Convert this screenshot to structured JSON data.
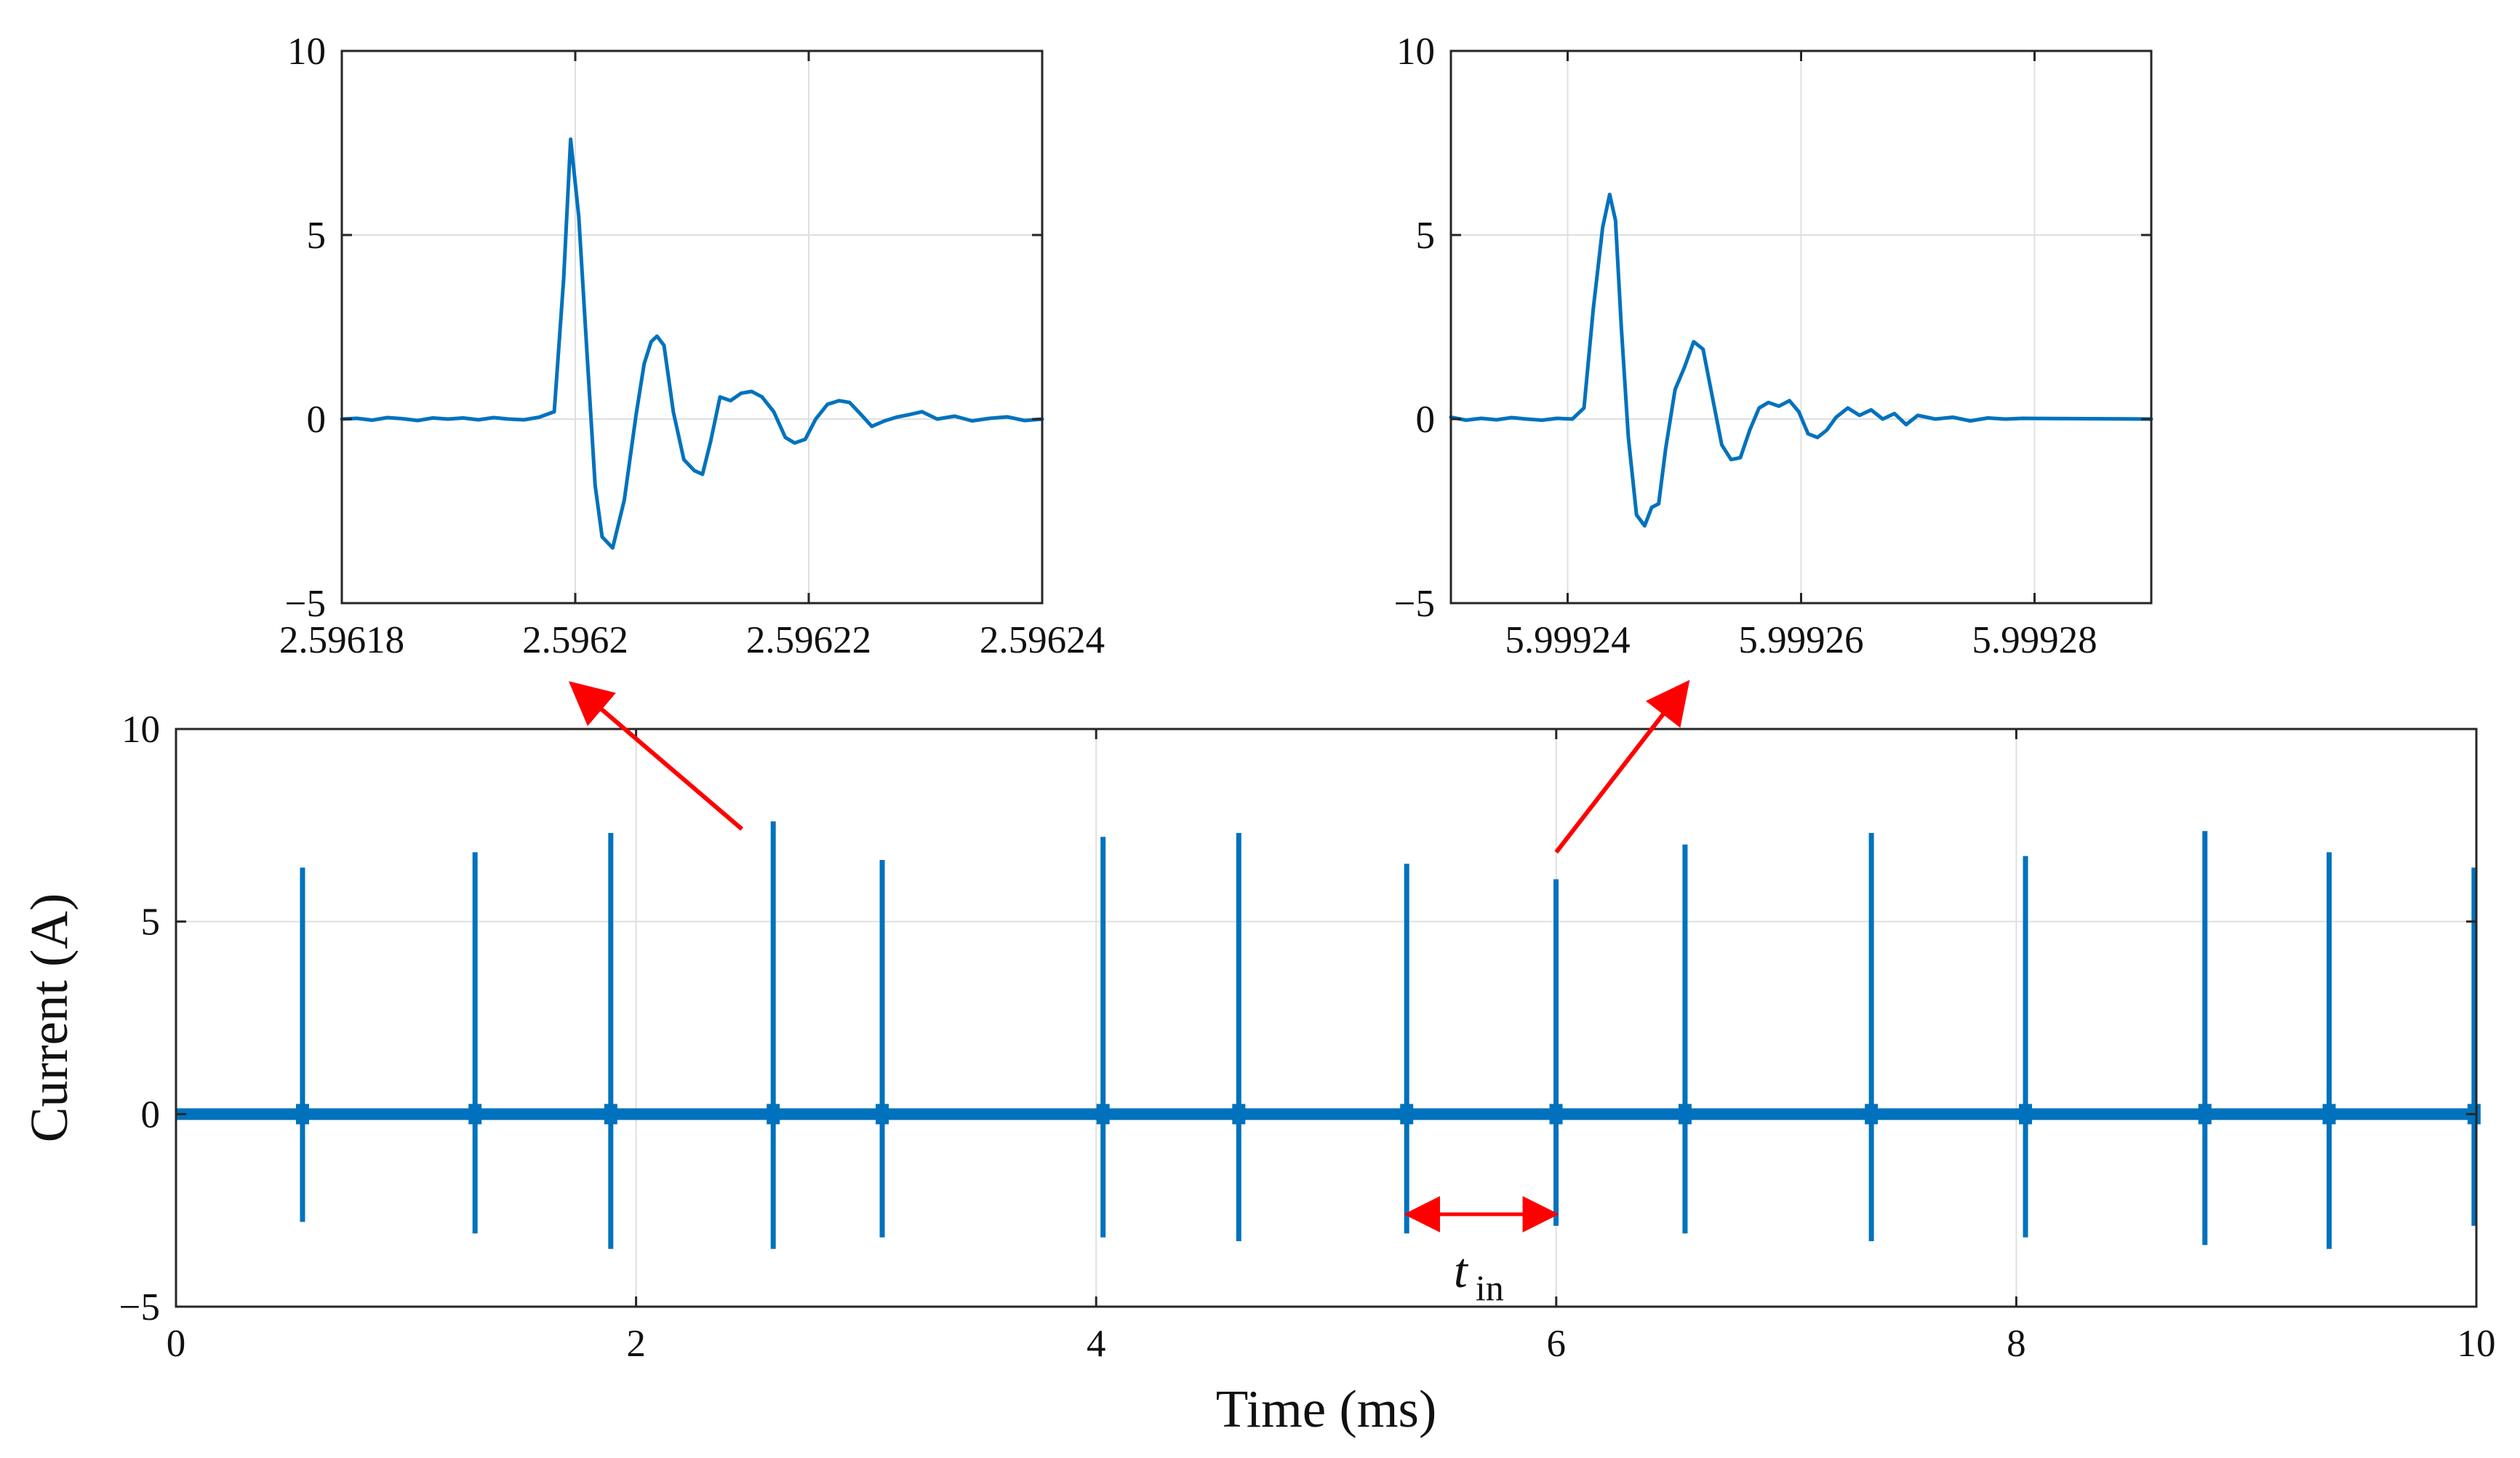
{
  "colors": {
    "trace": "#0072BD",
    "arrow": "#FF0000",
    "axis": "#262626",
    "grid": "#DFDFDF",
    "text": "#111111"
  },
  "chart_data": [
    {
      "id": "zoom-left",
      "type": "line",
      "title": "",
      "xlabel": "",
      "ylabel": "",
      "xlim": [
        2.59618,
        2.59624
      ],
      "ylim": [
        -5,
        10
      ],
      "grid": true,
      "x_ticks": [
        2.59618,
        2.5962,
        2.59622,
        2.59624
      ],
      "x_tick_labels": [
        "2.59618",
        "2.5962",
        "2.59622",
        "2.59624"
      ],
      "y_ticks": [
        -5,
        0,
        5,
        10
      ],
      "y_tick_labels": [
        "−5",
        "0",
        "5",
        "10"
      ],
      "series": [
        {
          "name": "current zoom at 2.5962 ms",
          "x": [
            2.59618,
            2.5961813,
            2.5961826,
            2.5961839,
            2.5961852,
            2.5961865,
            2.5961878,
            2.5961891,
            2.5961904,
            2.5961917,
            2.596193,
            2.5961943,
            2.5961956,
            2.5961969,
            2.5961982,
            2.596199,
            2.5961996,
            2.5962003,
            2.596201,
            2.5962017,
            2.5962023,
            2.5962032,
            2.5962042,
            2.5962052,
            2.5962059,
            2.5962065,
            2.596207,
            2.5962076,
            2.5962084,
            2.5962093,
            2.5962102,
            2.5962109,
            2.5962116,
            2.5962124,
            2.5962133,
            2.5962142,
            2.5962151,
            2.596216,
            2.596217,
            2.596218,
            2.5962188,
            2.5962197,
            2.5962206,
            2.5962216,
            2.5962226,
            2.5962235,
            2.5962244,
            2.5962254,
            2.5962265,
            2.5962275,
            2.5962286,
            2.5962297,
            2.596231,
            2.5962325,
            2.596234,
            2.5962355,
            2.596237,
            2.5962385,
            2.59624
          ],
          "values": [
            0.0,
            0.02,
            -0.03,
            0.04,
            0.01,
            -0.04,
            0.03,
            0.0,
            0.03,
            -0.02,
            0.04,
            0.0,
            -0.02,
            0.05,
            0.2,
            3.8,
            7.6,
            5.5,
            1.8,
            -1.8,
            -3.2,
            -3.5,
            -2.2,
            0.1,
            1.5,
            2.1,
            2.25,
            2.0,
            0.2,
            -1.1,
            -1.4,
            -1.5,
            -0.6,
            0.6,
            0.5,
            0.7,
            0.75,
            0.6,
            0.2,
            -0.5,
            -0.65,
            -0.55,
            0.0,
            0.4,
            0.5,
            0.45,
            0.15,
            -0.2,
            -0.05,
            0.05,
            0.12,
            0.2,
            0.0,
            0.08,
            -0.05,
            0.02,
            0.06,
            -0.04,
            0.0
          ]
        }
      ]
    },
    {
      "id": "zoom-right",
      "type": "line",
      "title": "",
      "xlabel": "",
      "ylabel": "",
      "xlim": [
        5.99923,
        5.99929
      ],
      "ylim": [
        -5,
        10
      ],
      "grid": true,
      "x_ticks": [
        5.99924,
        5.99926,
        5.99928
      ],
      "x_tick_labels": [
        "5.99924",
        "5.99926",
        "5.99928"
      ],
      "y_ticks": [
        -5,
        0,
        5,
        10
      ],
      "y_tick_labels": [
        "−5",
        "0",
        "5",
        "10"
      ],
      "series": [
        {
          "name": "current zoom at 5.99925 ms",
          "x": [
            5.99923,
            5.9992313,
            5.9992326,
            5.9992339,
            5.9992352,
            5.9992365,
            5.9992378,
            5.9992391,
            5.9992404,
            5.9992414,
            5.9992422,
            5.999243,
            5.9992436,
            5.9992441,
            5.9992446,
            5.9992452,
            5.9992459,
            5.9992466,
            5.9992472,
            5.9992478,
            5.9992484,
            5.9992492,
            5.99925,
            5.9992508,
            5.9992516,
            5.9992524,
            5.9992532,
            5.999254,
            5.9992548,
            5.9992556,
            5.9992564,
            5.9992572,
            5.9992581,
            5.999259,
            5.9992598,
            5.9992606,
            5.9992614,
            5.9992622,
            5.999263,
            5.999264,
            5.999265,
            5.999266,
            5.999267,
            5.999268,
            5.999269,
            5.99927,
            5.9992715,
            5.999273,
            5.9992745,
            5.999276,
            5.9992775,
            5.999279,
            5.99929
          ],
          "values": [
            0.05,
            -0.03,
            0.02,
            -0.02,
            0.04,
            0.0,
            -0.03,
            0.02,
            0.0,
            0.3,
            3.0,
            5.2,
            6.1,
            5.4,
            2.5,
            -0.5,
            -2.6,
            -2.9,
            -2.4,
            -2.3,
            -0.8,
            0.8,
            1.4,
            2.1,
            1.9,
            0.6,
            -0.7,
            -1.1,
            -1.05,
            -0.3,
            0.3,
            0.45,
            0.35,
            0.5,
            0.2,
            -0.4,
            -0.5,
            -0.3,
            0.05,
            0.3,
            0.1,
            0.25,
            0.0,
            0.15,
            -0.15,
            0.1,
            0.0,
            0.05,
            -0.05,
            0.03,
            0.0,
            0.02,
            0.0
          ]
        }
      ]
    },
    {
      "id": "main",
      "type": "line",
      "title": "",
      "xlabel": "Time (ms)",
      "ylabel": "Current (A)",
      "xlim": [
        0,
        10
      ],
      "ylim": [
        -5,
        10
      ],
      "grid": true,
      "x_ticks": [
        0,
        2,
        4,
        6,
        8,
        10
      ],
      "x_tick_labels": [
        "0",
        "2",
        "4",
        "6",
        "8",
        "10"
      ],
      "y_ticks": [
        -5,
        0,
        5,
        10
      ],
      "y_tick_labels": [
        "−5",
        "0",
        "5",
        "10"
      ],
      "baseline": 0,
      "pulses": [
        {
          "t": 0.55,
          "peak": 6.4,
          "trough": -2.8
        },
        {
          "t": 1.3,
          "peak": 6.8,
          "trough": -3.1
        },
        {
          "t": 1.89,
          "peak": 7.3,
          "trough": -3.5
        },
        {
          "t": 2.5962,
          "peak": 7.6,
          "trough": -3.5
        },
        {
          "t": 3.07,
          "peak": 6.6,
          "trough": -3.2
        },
        {
          "t": 4.03,
          "peak": 7.2,
          "trough": -3.2
        },
        {
          "t": 4.62,
          "peak": 7.3,
          "trough": -3.3
        },
        {
          "t": 5.35,
          "peak": 6.5,
          "trough": -3.1
        },
        {
          "t": 5.99925,
          "peak": 6.1,
          "trough": -2.9
        },
        {
          "t": 6.56,
          "peak": 7.0,
          "trough": -3.1
        },
        {
          "t": 7.37,
          "peak": 7.3,
          "trough": -3.3
        },
        {
          "t": 8.04,
          "peak": 6.7,
          "trough": -3.2
        },
        {
          "t": 8.82,
          "peak": 7.35,
          "trough": -3.4
        },
        {
          "t": 9.36,
          "peak": 6.8,
          "trough": -3.5
        },
        {
          "t": 9.99,
          "peak": 6.4,
          "trough": -2.9
        }
      ],
      "annotations": {
        "interval_label": "t",
        "interval_subscript": "in",
        "interval_start": 5.35,
        "interval_end": 5.99925,
        "interval_level": -2.6,
        "zoom_arrows": [
          {
            "from": {
              "t": 2.46,
              "i": 7.4
            },
            "to_panel": "zoom-left",
            "to_tick": 2.5962
          },
          {
            "from": {
              "t": 6.0,
              "i": 6.8
            },
            "to_panel": "zoom-right",
            "to_tick": 5.99925
          }
        ]
      }
    }
  ]
}
